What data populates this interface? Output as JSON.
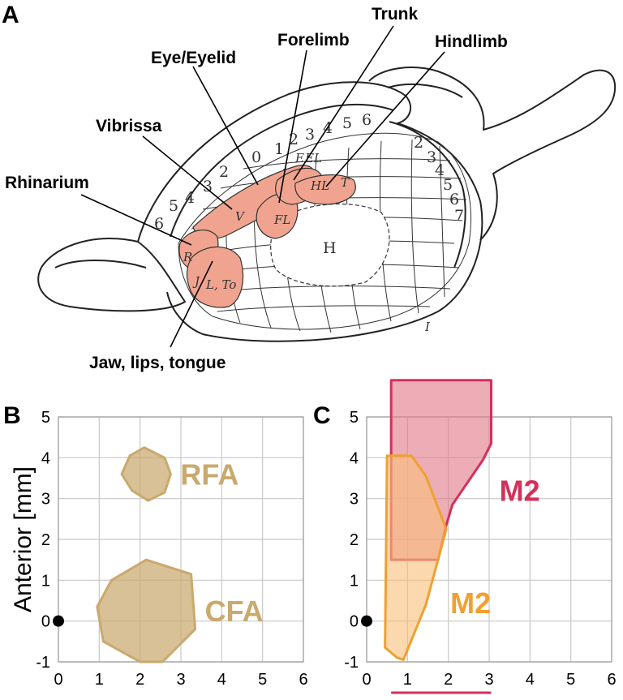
{
  "panels": {
    "a": {
      "letter": "A"
    },
    "b": {
      "letter": "B"
    },
    "c": {
      "letter": "C"
    }
  },
  "callouts": [
    "Trunk",
    "Forelimb",
    "Hindlimb",
    "Eye/Eyelid",
    "Vibrissa",
    "Rhinarium",
    "Jaw, lips, tongue"
  ],
  "sketch_labels": {
    "zone_letters": [
      "R",
      "V",
      "FL",
      "HL",
      "T",
      "E",
      "EL",
      "J",
      "L, To",
      "H",
      "I"
    ],
    "top_numbers": [
      "6",
      "5",
      "4",
      "3",
      "2",
      "0",
      "1",
      "2",
      "3",
      "4",
      "5",
      "6"
    ],
    "side_numbers": [
      "2",
      "3",
      "4",
      "5",
      "6",
      "7"
    ]
  },
  "colors": {
    "somatotopy": "#f0a48f",
    "cfa_rfa": "#c9a96e",
    "m2_red_fill": "#e17b8a",
    "m2_red_line": "#d4305a",
    "m2_orange_fill": "#f8c07a",
    "m2_orange_line": "#f0a030",
    "red_bar": "#d4305a"
  },
  "chart_data": [
    {
      "type": "scatter",
      "panel": "B",
      "ylabel": "Anterior [mm]",
      "xlim": [
        0,
        6
      ],
      "ylim": [
        -1,
        5
      ],
      "xticks": [
        "0",
        "1",
        "2",
        "3",
        "4",
        "5",
        "6"
      ],
      "yticks": [
        "-1",
        "0",
        "1",
        "2",
        "3",
        "4",
        "5"
      ],
      "grid": true,
      "reference_point": {
        "x": 0,
        "y": 0
      },
      "regions": [
        {
          "name": "RFA",
          "outline": [
            [
              2.1,
              4.25
            ],
            [
              2.6,
              4.0
            ],
            [
              2.75,
              3.6
            ],
            [
              2.6,
              3.15
            ],
            [
              2.2,
              2.95
            ],
            [
              1.8,
              3.2
            ],
            [
              1.55,
              3.6
            ],
            [
              1.75,
              4.05
            ]
          ]
        },
        {
          "name": "CFA",
          "outline": [
            [
              2.15,
              1.5
            ],
            [
              3.25,
              1.15
            ],
            [
              3.35,
              -0.2
            ],
            [
              2.55,
              -1.0
            ],
            [
              2.0,
              -1.0
            ],
            [
              1.1,
              -0.5
            ],
            [
              0.95,
              0.35
            ],
            [
              1.3,
              1.0
            ]
          ]
        }
      ]
    },
    {
      "type": "scatter",
      "panel": "C",
      "xlim": [
        0,
        6
      ],
      "ylim": [
        -1,
        5
      ],
      "xticks": [
        "0",
        "1",
        "2",
        "3",
        "4",
        "5",
        "6"
      ],
      "yticks": [
        "-1",
        "0",
        "1",
        "2",
        "3",
        "4",
        "5"
      ],
      "grid": true,
      "reference_point": {
        "x": 0,
        "y": 0
      },
      "regions": [
        {
          "name": "M2",
          "color_key": "red",
          "outline": [
            [
              0.6,
              5.9
            ],
            [
              3.05,
              5.9
            ],
            [
              3.05,
              4.35
            ],
            [
              2.85,
              3.95
            ],
            [
              2.1,
              2.85
            ],
            [
              1.95,
              2.35
            ],
            [
              1.75,
              1.5
            ],
            [
              0.6,
              1.5
            ]
          ]
        },
        {
          "name": "M2",
          "color_key": "orange",
          "outline": [
            [
              0.5,
              4.05
            ],
            [
              1.1,
              4.05
            ],
            [
              1.45,
              3.55
            ],
            [
              1.95,
              2.25
            ],
            [
              1.45,
              0.4
            ],
            [
              0.9,
              -0.95
            ],
            [
              0.75,
              -0.9
            ],
            [
              0.45,
              -0.65
            ]
          ]
        }
      ],
      "range_bar": [
        0.6,
        3.05
      ]
    }
  ]
}
